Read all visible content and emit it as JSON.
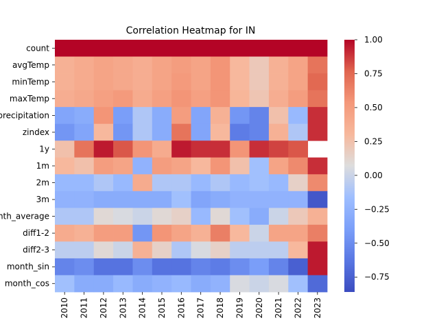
{
  "chart_data": {
    "type": "heatmap",
    "title": "Correlation Heatmap for IN",
    "xlabel": "",
    "ylabel": "",
    "columns": [
      "2010",
      "2011",
      "2012",
      "2013",
      "2014",
      "2015",
      "2016",
      "2017",
      "2018",
      "2019",
      "2020",
      "2021",
      "2022",
      "2023"
    ],
    "rows": [
      "count",
      "avgTemp",
      "minTemp",
      "maxTemp",
      "precipitation",
      "zindex",
      "1y",
      "1m",
      "2m",
      "3m",
      "month_average",
      "diff1-2",
      "diff2-3",
      "month_sin",
      "month_cos"
    ],
    "values": [
      [
        1.0,
        1.0,
        1.0,
        1.0,
        1.0,
        1.0,
        1.0,
        1.0,
        1.0,
        1.0,
        1.0,
        1.0,
        1.0,
        1.0
      ],
      [
        0.35,
        0.4,
        0.45,
        0.42,
        0.38,
        0.45,
        0.5,
        0.45,
        0.55,
        0.3,
        0.2,
        0.35,
        0.45,
        0.7
      ],
      [
        0.35,
        0.4,
        0.45,
        0.42,
        0.38,
        0.45,
        0.52,
        0.45,
        0.55,
        0.3,
        0.2,
        0.35,
        0.45,
        0.75
      ],
      [
        0.38,
        0.42,
        0.48,
        0.52,
        0.4,
        0.48,
        0.55,
        0.48,
        0.55,
        0.32,
        0.22,
        0.38,
        0.5,
        0.7
      ],
      [
        -0.35,
        -0.3,
        0.55,
        -0.4,
        -0.1,
        -0.3,
        0.5,
        -0.35,
        0.35,
        -0.45,
        -0.55,
        0.25,
        -0.2,
        0.9
      ],
      [
        -0.45,
        -0.35,
        0.3,
        -0.45,
        -0.1,
        -0.3,
        0.7,
        -0.35,
        0.3,
        -0.6,
        -0.55,
        0.35,
        -0.1,
        0.9
      ],
      [
        0.25,
        0.7,
        0.95,
        0.8,
        0.55,
        0.4,
        0.95,
        0.9,
        0.9,
        0.55,
        0.9,
        0.85,
        0.8,
        null
      ],
      [
        0.3,
        0.25,
        0.5,
        0.45,
        -0.25,
        0.5,
        0.45,
        0.3,
        0.55,
        0.25,
        -0.15,
        0.45,
        0.6,
        0.9
      ],
      [
        -0.2,
        -0.2,
        -0.1,
        -0.2,
        0.4,
        -0.1,
        -0.1,
        -0.2,
        -0.1,
        -0.2,
        -0.15,
        -0.2,
        0.15,
        0.6
      ],
      [
        -0.25,
        -0.25,
        -0.3,
        -0.3,
        -0.3,
        -0.3,
        -0.15,
        -0.35,
        -0.3,
        -0.25,
        -0.25,
        -0.25,
        -0.25,
        -0.8
      ],
      [
        -0.1,
        -0.1,
        0.1,
        0.05,
        0.0,
        0.1,
        0.15,
        -0.2,
        0.1,
        -0.15,
        -0.3,
        0.0,
        0.2,
        0.35
      ],
      [
        0.4,
        0.35,
        0.5,
        0.5,
        -0.45,
        0.55,
        0.45,
        0.35,
        0.65,
        0.3,
        0.0,
        0.45,
        0.45,
        0.65
      ],
      [
        -0.05,
        -0.05,
        0.1,
        0.0,
        0.35,
        0.15,
        -0.1,
        0.05,
        0.15,
        -0.05,
        -0.05,
        -0.05,
        0.3,
        0.95
      ],
      [
        -0.55,
        -0.5,
        -0.65,
        -0.65,
        -0.5,
        -0.65,
        -0.65,
        -0.55,
        -0.6,
        -0.5,
        -0.4,
        -0.55,
        -0.75,
        0.95
      ],
      [
        -0.15,
        -0.3,
        -0.3,
        -0.2,
        -0.3,
        -0.25,
        -0.2,
        -0.3,
        -0.25,
        0.05,
        0.0,
        0.05,
        -0.15,
        -0.7
      ]
    ],
    "vmin": -0.86,
    "vmax": 1.0,
    "colormap": "coolwarm",
    "colorbar_ticks": [
      1.0,
      0.75,
      0.5,
      0.25,
      0.0,
      -0.25,
      -0.5,
      -0.75
    ],
    "colorbar_tick_labels": [
      "1.00",
      "0.75",
      "0.50",
      "0.25",
      "0.00",
      "−0.25",
      "−0.50",
      "−0.75"
    ]
  }
}
